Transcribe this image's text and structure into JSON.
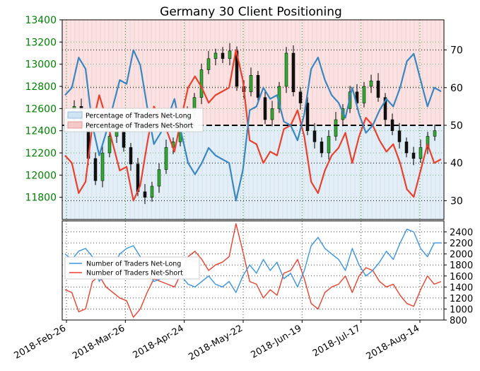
{
  "chart_data": {
    "type": "line",
    "title": "Germany 30 Client Positioning",
    "x_dates": [
      "2018-Feb-26",
      "2018-Mar-26",
      "2018-Apr-24",
      "2018-May-22",
      "2018-Jun-19",
      "2018-Jul-17",
      "2018-Aug-14"
    ],
    "top_panel": {
      "type": "candlestick+line",
      "left_axis": {
        "ticks": [
          11800,
          12000,
          12200,
          12400,
          12600,
          12800,
          13000,
          13200,
          13400
        ],
        "color": "#008000"
      },
      "right_axis": {
        "ticks": [
          30,
          40,
          50,
          60,
          70
        ]
      },
      "reference_line": 50,
      "legend": {
        "placement": "left",
        "items": [
          {
            "label": "Percentage of Traders Net-Long",
            "color": "#cfe3f3"
          },
          {
            "label": "Percentage of Traders Net-Short",
            "color": "#f6c9c9"
          }
        ]
      },
      "series": [
        {
          "name": "Percentage of Traders Net-Long",
          "color": "#3a87c0",
          "values": [
            58,
            60,
            68,
            65,
            50,
            42,
            48,
            55,
            62,
            61,
            70,
            66,
            55,
            45,
            48,
            52,
            57,
            48,
            40,
            37,
            40,
            44,
            42,
            41,
            40,
            30,
            38,
            54,
            55,
            60,
            57,
            58,
            51,
            50,
            46,
            53,
            65,
            68,
            62,
            58,
            56,
            52,
            60,
            53,
            48,
            50,
            54,
            57,
            55,
            60,
            67,
            69,
            62,
            55,
            60,
            59
          ]
        },
        {
          "name": "Percentage of Traders Net-Short",
          "color": "#e8412e",
          "values": [
            42,
            40,
            32,
            35,
            50,
            58,
            52,
            45,
            38,
            39,
            30,
            34,
            45,
            55,
            52,
            48,
            43,
            52,
            60,
            63,
            60,
            56,
            58,
            59,
            60,
            70,
            62,
            46,
            45,
            40,
            43,
            42,
            49,
            50,
            54,
            47,
            35,
            32,
            38,
            42,
            44,
            48,
            40,
            47,
            52,
            50,
            46,
            43,
            45,
            40,
            33,
            31,
            38,
            45,
            40,
            41
          ]
        }
      ],
      "price_closes": [
        12500,
        12620,
        12450,
        12150,
        11950,
        12200,
        12350,
        12400,
        12250,
        12100,
        11850,
        11800,
        11900,
        12050,
        12250,
        12300,
        12450,
        12550,
        12700,
        12950,
        13050,
        13100,
        13050,
        13120,
        12800,
        12750,
        12900,
        12700,
        12500,
        12600,
        12800,
        13100,
        12750,
        12650,
        12400,
        12300,
        12200,
        12350,
        12500,
        12600,
        12750,
        12650,
        12800,
        12850,
        12700,
        12500,
        12400,
        12300,
        12200,
        12150,
        12250,
        12350,
        12400
      ]
    },
    "bottom_panel": {
      "type": "line",
      "right_axis": {
        "ticks": [
          800,
          1000,
          1200,
          1400,
          1600,
          1800,
          2000,
          2200,
          2400
        ]
      },
      "legend": {
        "placement": "left",
        "items": [
          {
            "label": "Number of Traders Net-Long",
            "color": "#3b94df"
          },
          {
            "label": "Number of Traders Net-Short",
            "color": "#e8412e"
          }
        ]
      },
      "series": [
        {
          "name": "Number of Traders Net-Long",
          "color": "#3b94df",
          "values": [
            2000,
            1900,
            2050,
            2100,
            1950,
            1500,
            1700,
            1750,
            2000,
            2100,
            2150,
            1950,
            1700,
            1500,
            1550,
            1600,
            1800,
            1600,
            1450,
            1400,
            1500,
            1600,
            1450,
            1400,
            1500,
            1300,
            1600,
            1800,
            1650,
            1900,
            1700,
            1850,
            1550,
            1650,
            1400,
            1700,
            2150,
            2300,
            2100,
            2000,
            1900,
            1700,
            2100,
            1800,
            1600,
            1700,
            1850,
            2050,
            1900,
            2200,
            2450,
            2400,
            2100,
            1950,
            2200,
            2200
          ]
        },
        {
          "name": "Number of Traders Net-Short",
          "color": "#e8412e",
          "values": [
            1350,
            1300,
            950,
            1000,
            1500,
            1600,
            1400,
            1300,
            1200,
            1150,
            850,
            1000,
            1300,
            1550,
            1500,
            1450,
            1400,
            1650,
            1950,
            2050,
            1900,
            1700,
            1800,
            1850,
            1950,
            2550,
            2050,
            1500,
            1450,
            1200,
            1350,
            1250,
            1650,
            1700,
            1900,
            1550,
            1100,
            1000,
            1300,
            1400,
            1450,
            1600,
            1300,
            1600,
            1750,
            1700,
            1500,
            1400,
            1450,
            1250,
            1100,
            1050,
            1350,
            1600,
            1450,
            1500
          ]
        }
      ]
    }
  }
}
